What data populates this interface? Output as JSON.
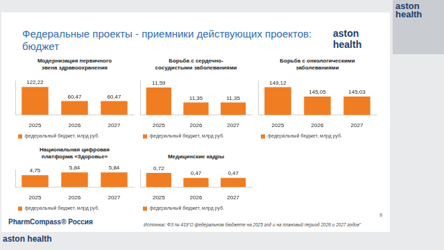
{
  "slide": {
    "title": "Федеральные проекты - приемники действующих проектов: бюджет",
    "logo": "aston health",
    "source": "Источник: ФЗ № 419\"О федеральном бюджете на 2025 год и на плановый период 2026 и 2027 годов\"",
    "page_number": 9,
    "publisher": "PharmCompass® Россия"
  },
  "chart_data": [
    {
      "type": "bar",
      "title": "Модернизация первичного звена здравоохранения",
      "categories": [
        "2025",
        "2026",
        "2027"
      ],
      "series": [
        {
          "name": "федеральный бюджет, млрд руб.",
          "color": "#f07d22",
          "values": [
            122.22,
            60.47,
            60.47
          ],
          "value_labels": [
            "122,22",
            "60,47",
            "60,47"
          ]
        }
      ],
      "ylim": [
        0,
        150
      ],
      "grid": false,
      "legend": "bottom",
      "data_labels": true,
      "tick_labels": "x"
    },
    {
      "type": "bar",
      "title": "Борьба с сердечно-сосудистыми заболеваниями",
      "categories": [
        "2025",
        "2026",
        "2027"
      ],
      "series": [
        {
          "name": "федеральный бюджет, млрд руб.",
          "color": "#f07d22",
          "values": [
            11.59,
            11.35,
            11.35
          ],
          "value_labels": [
            "11,59",
            "11,35",
            "11,35"
          ]
        }
      ],
      "ylim": [
        11.15,
        11.7
      ],
      "grid": false,
      "legend": "bottom",
      "data_labels": true,
      "tick_labels": "x"
    },
    {
      "type": "bar",
      "title": "Борьба с онкологическими заболеваниями",
      "categories": [
        "2025",
        "2026",
        "2027"
      ],
      "series": [
        {
          "name": "федеральный бюджет, млрд руб.",
          "color": "#f07d22",
          "values": [
            149.12,
            145.05,
            145.03
          ],
          "value_labels": [
            "149,12",
            "145,05",
            "145,03"
          ]
        }
      ],
      "ylim": [
        137,
        152
      ],
      "grid": false,
      "legend": "bottom",
      "data_labels": true,
      "tick_labels": "x"
    },
    {
      "type": "bar",
      "title": "Национальная цифровая платформа «Здоровье»",
      "categories": [
        "2025",
        "2026",
        "2027"
      ],
      "series": [
        {
          "name": "федеральный бюджет, млрд руб.",
          "color": "#f07d22",
          "values": [
            4.75,
            5.84,
            5.84
          ],
          "value_labels": [
            "4,75",
            "5,84",
            "5,84"
          ]
        }
      ],
      "ylim": [
        0,
        7
      ],
      "grid": false,
      "legend": "bottom",
      "data_labels": true,
      "tick_labels": "x"
    },
    {
      "type": "bar",
      "title": "Медицинские кадры",
      "categories": [
        "2025",
        "2026",
        "2027"
      ],
      "series": [
        {
          "name": "федеральный бюджет, млрд руб.",
          "color": "#f07d22",
          "values": [
            0.72,
            0.47,
            0.47
          ],
          "value_labels": [
            "0,72",
            "0,47",
            "0,47"
          ]
        }
      ],
      "ylim": [
        0,
        0.9
      ],
      "grid": false,
      "legend": "bottom",
      "data_labels": true,
      "tick_labels": "x"
    }
  ]
}
